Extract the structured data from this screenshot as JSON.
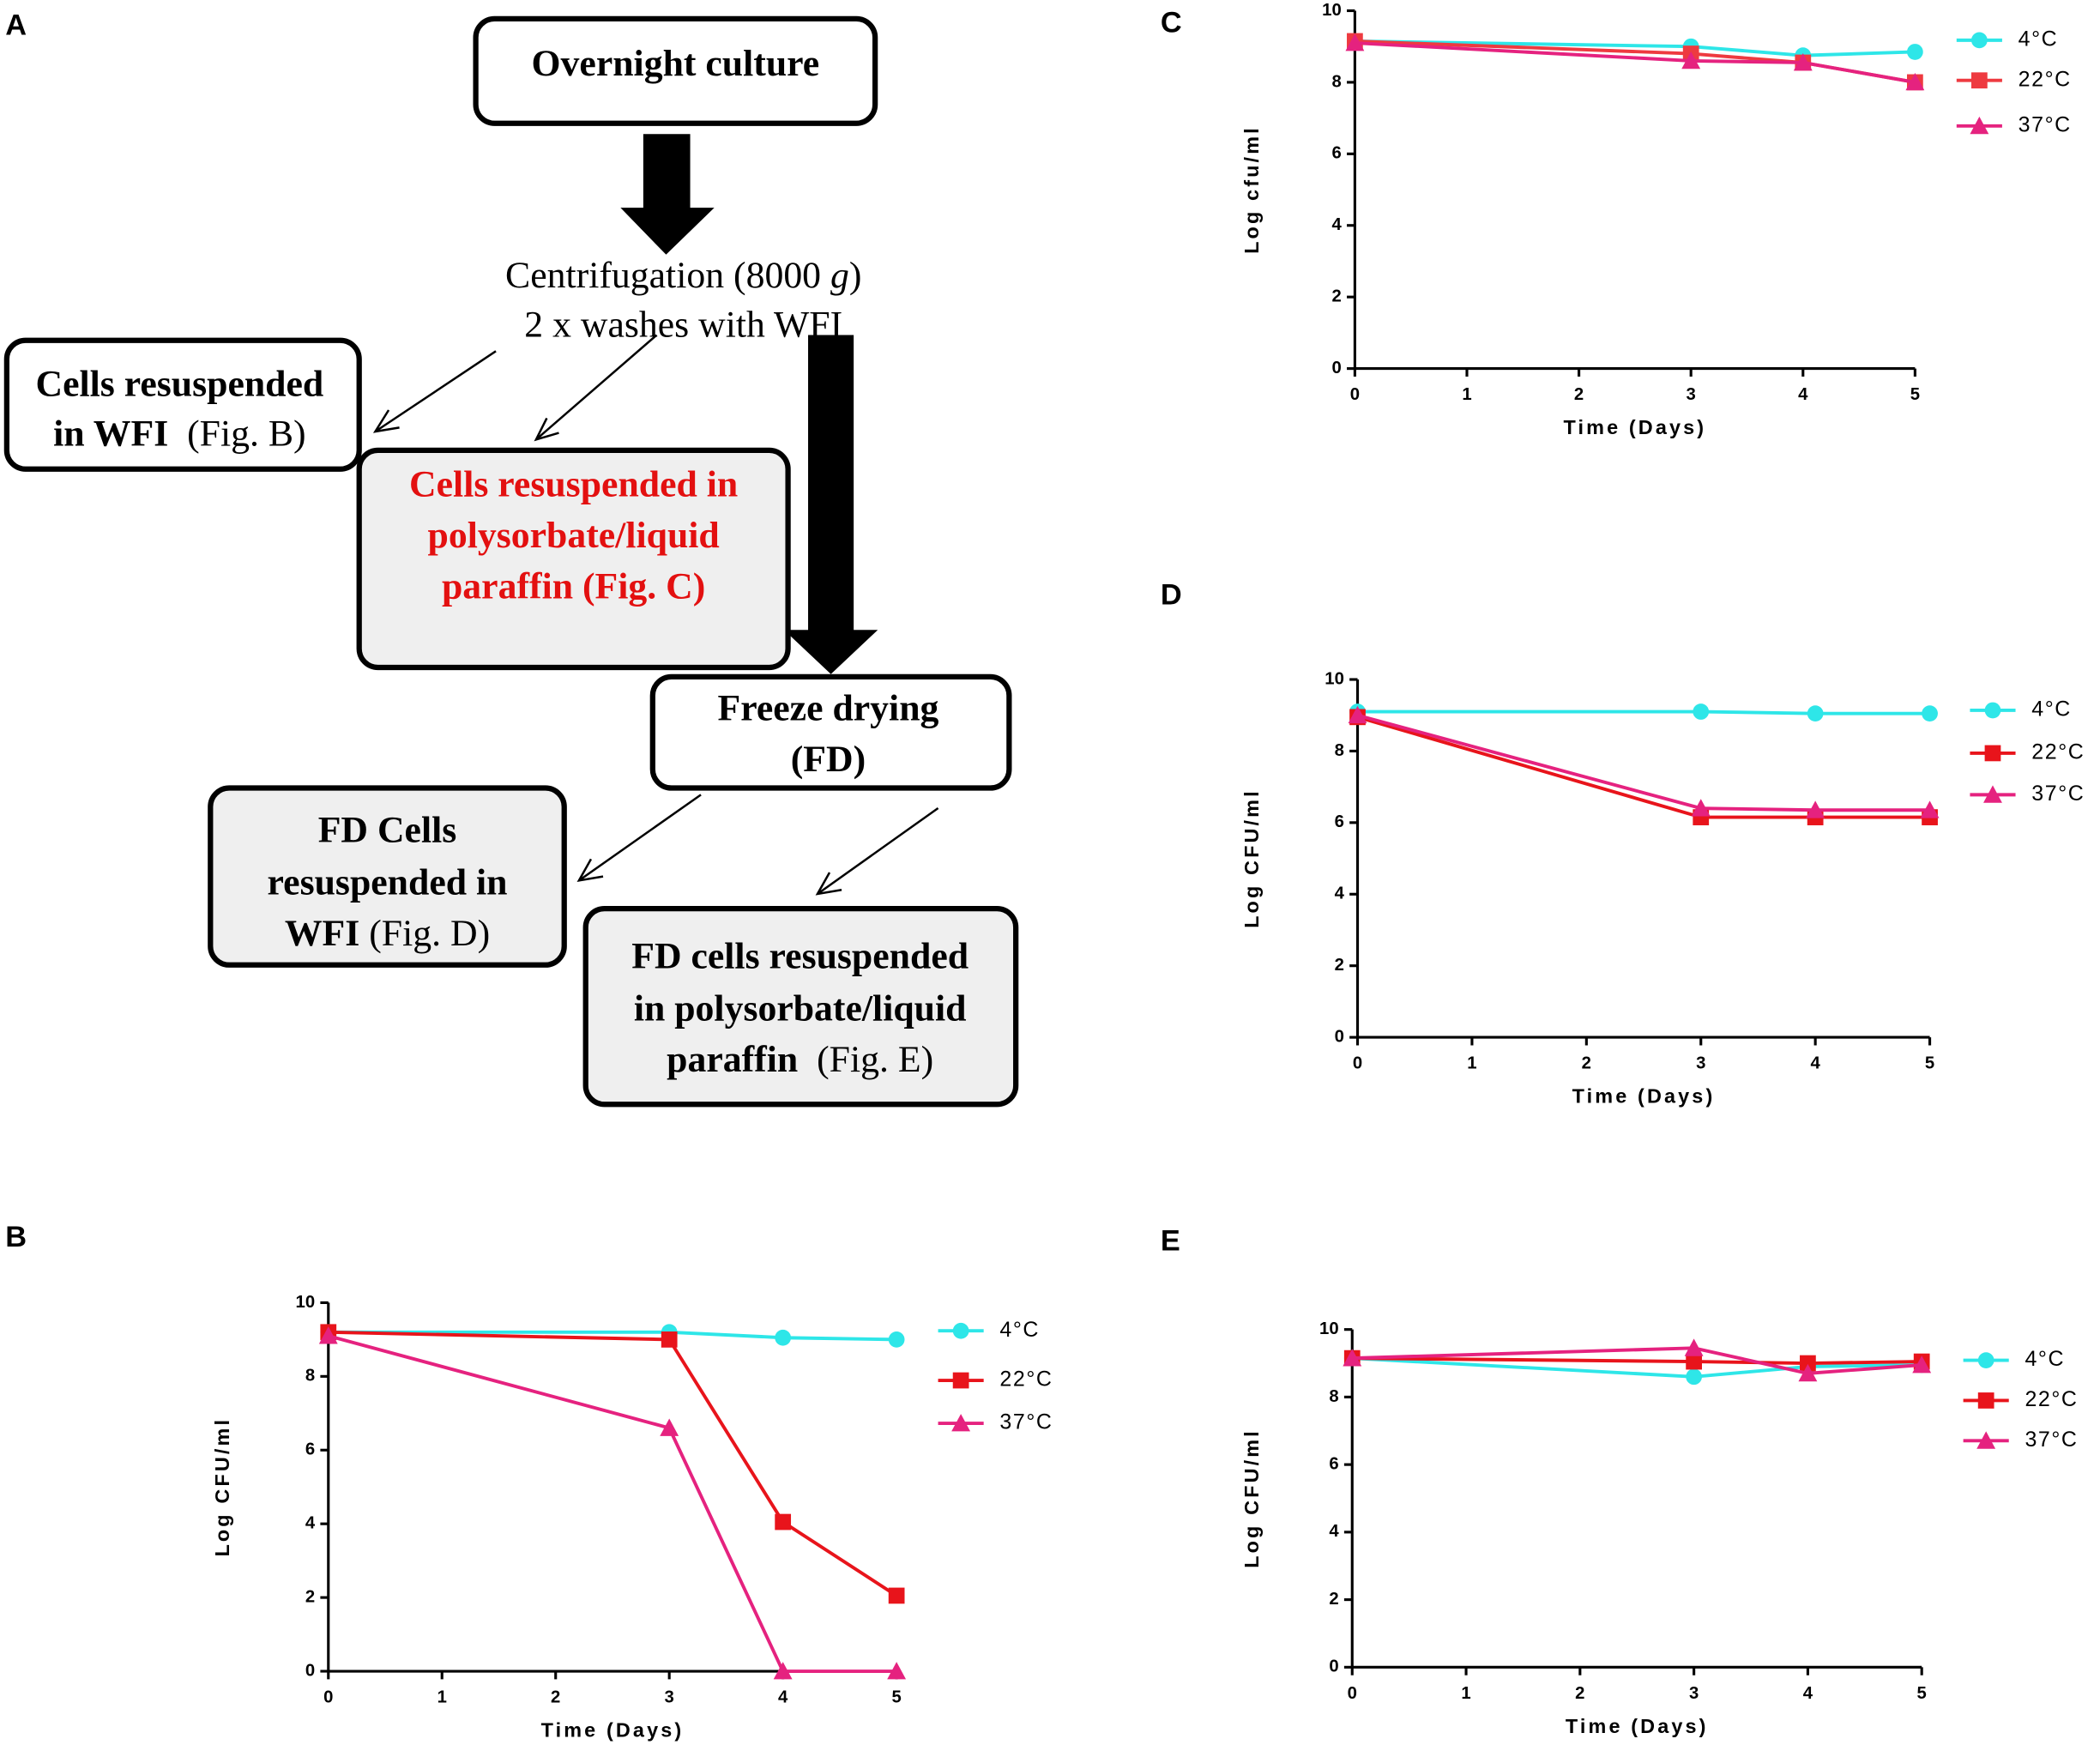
{
  "diagram": {
    "label": "A",
    "nodes": [
      {
        "lines": [
          [
            {
              "t": "Overnight culture",
              "s": "bold"
            }
          ]
        ]
      },
      {
        "lines": [
          [
            {
              "t": "Centrifugation (8000 ",
              "s": "normal"
            },
            {
              "t": "g",
              "s": "italic"
            },
            {
              "t": ")",
              "s": "normal"
            }
          ],
          [
            {
              "t": "2 x washes with WFI",
              "s": "normal"
            }
          ]
        ]
      },
      {
        "lines": [
          [
            {
              "t": "Cells resuspended",
              "s": "bold"
            }
          ],
          [
            {
              "t": "in WFI",
              "s": "bold"
            },
            {
              "t": "  (Fig. B)",
              "s": "normal"
            }
          ]
        ]
      },
      {
        "lines": [
          [
            {
              "t": "Cells resuspended in",
              "s": "bold"
            }
          ],
          [
            {
              "t": "polysorbate/liquid",
              "s": "bold"
            }
          ],
          [
            {
              "t": "paraffin (Fig. C)",
              "s": "bold"
            }
          ]
        ]
      },
      {
        "lines": [
          [
            {
              "t": "Freeze drying",
              "s": "bold"
            }
          ],
          [
            {
              "t": "(FD)",
              "s": "bold"
            }
          ]
        ]
      },
      {
        "lines": [
          [
            {
              "t": "FD Cells",
              "s": "bold"
            }
          ],
          [
            {
              "t": "resuspended in",
              "s": "bold"
            }
          ],
          [
            {
              "t": "WFI",
              "s": "bold"
            },
            {
              "t": " (Fig. D)",
              "s": "normal"
            }
          ]
        ]
      },
      {
        "lines": [
          [
            {
              "t": "FD cells resuspended",
              "s": "bold"
            }
          ],
          [
            {
              "t": "in polysorbate/liquid",
              "s": "bold"
            }
          ],
          [
            {
              "t": "paraffin",
              "s": "bold"
            },
            {
              "t": "  (Fig. E)",
              "s": "normal"
            }
          ]
        ]
      }
    ]
  },
  "chart_data": [
    {
      "type": "line",
      "panel_label": "B",
      "x_label": "Time (Days)",
      "y_label": "Log CFU/ml",
      "x": [
        0,
        3,
        4,
        5
      ],
      "xlim": [
        0,
        5
      ],
      "xticks": [
        0,
        1,
        2,
        3,
        4,
        5
      ],
      "ylim": [
        0,
        10
      ],
      "yticks": [
        0,
        2,
        4,
        6,
        8,
        10
      ],
      "series": [
        {
          "name": "4°C",
          "color": "#2ee6e8",
          "marker": "circle",
          "values": [
            9.2,
            9.2,
            9.05,
            9.0
          ]
        },
        {
          "name": "22°C",
          "color": "#e8141b",
          "marker": "square",
          "values": [
            9.2,
            9.0,
            4.05,
            2.05
          ]
        },
        {
          "name": "37°C",
          "color": "#e5227f",
          "marker": "triangle",
          "values": [
            9.1,
            6.6,
            0,
            0
          ]
        }
      ]
    },
    {
      "type": "line",
      "panel_label": "C",
      "x_label": "Time (Days)",
      "y_label": "Log cfu/ml",
      "x": [
        0,
        3,
        4,
        5
      ],
      "xlim": [
        0,
        5
      ],
      "xticks": [
        0,
        1,
        2,
        3,
        4,
        5
      ],
      "ylim": [
        0,
        10
      ],
      "yticks": [
        0,
        2,
        4,
        6,
        8,
        10
      ],
      "series": [
        {
          "name": "4°C",
          "color": "#2ee6e8",
          "marker": "circle",
          "values": [
            9.15,
            9.0,
            8.75,
            8.85
          ]
        },
        {
          "name": "22°C",
          "color": "#ee3a40",
          "marker": "square",
          "values": [
            9.15,
            8.8,
            8.55,
            8.0
          ]
        },
        {
          "name": "37°C",
          "color": "#e5227f",
          "marker": "triangle",
          "values": [
            9.1,
            8.6,
            8.55,
            8.0
          ]
        }
      ]
    },
    {
      "type": "line",
      "panel_label": "D",
      "x_label": "Time (Days)",
      "y_label": "Log CFU/ml",
      "x": [
        0,
        3,
        4,
        5
      ],
      "xlim": [
        0,
        5
      ],
      "xticks": [
        0,
        1,
        2,
        3,
        4,
        5
      ],
      "ylim": [
        0,
        10
      ],
      "yticks": [
        0,
        2,
        4,
        6,
        8,
        10
      ],
      "series": [
        {
          "name": "4°C",
          "color": "#2ee6e8",
          "marker": "circle",
          "values": [
            9.1,
            9.1,
            9.05,
            9.05
          ]
        },
        {
          "name": "22°C",
          "color": "#e8141b",
          "marker": "square",
          "values": [
            8.95,
            6.15,
            6.15,
            6.15
          ]
        },
        {
          "name": "37°C",
          "color": "#e5227f",
          "marker": "triangle",
          "values": [
            9.0,
            6.4,
            6.35,
            6.35
          ]
        }
      ]
    },
    {
      "type": "line",
      "panel_label": "E",
      "x_label": "Time (Days)",
      "y_label": "Log CFU/ml",
      "x": [
        0,
        3,
        4,
        5
      ],
      "xlim": [
        0,
        5
      ],
      "xticks": [
        0,
        1,
        2,
        3,
        4,
        5
      ],
      "ylim": [
        0,
        10
      ],
      "yticks": [
        0,
        2,
        4,
        6,
        8,
        10
      ],
      "series": [
        {
          "name": "4°C",
          "color": "#2ee6e8",
          "marker": "circle",
          "values": [
            9.15,
            8.6,
            8.9,
            8.95
          ]
        },
        {
          "name": "22°C",
          "color": "#e8141b",
          "marker": "square",
          "values": [
            9.15,
            9.05,
            9.0,
            9.05
          ]
        },
        {
          "name": "37°C",
          "color": "#e5227f",
          "marker": "triangle",
          "values": [
            9.15,
            9.45,
            8.7,
            8.95
          ]
        }
      ]
    }
  ]
}
